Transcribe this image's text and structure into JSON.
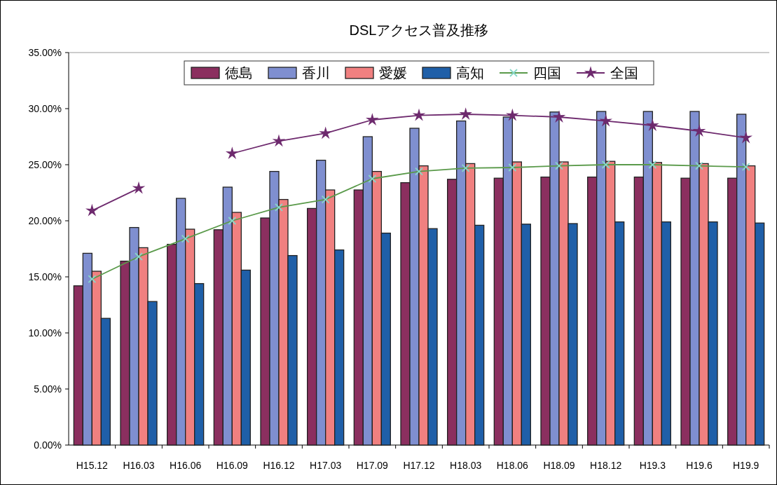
{
  "chart_data": {
    "type": "bar",
    "title": "DSLアクセス普及推移",
    "categories": [
      "H15.12",
      "H16.03",
      "H16.06",
      "H16.09",
      "H16.12",
      "H17.03",
      "H17.09",
      "H17.12",
      "H18.03",
      "H18.06",
      "H18.09",
      "H18.12",
      "H19.3",
      "H19.6",
      "H19.9"
    ],
    "series": [
      {
        "name": "徳島",
        "color": "#8b2f5f",
        "values": [
          14.2,
          16.4,
          17.9,
          19.2,
          20.25,
          21.1,
          22.75,
          23.4,
          23.7,
          23.8,
          23.9,
          23.9,
          23.9,
          23.8,
          23.8
        ]
      },
      {
        "name": "香川",
        "color": "#7f8fd0",
        "values": [
          17.1,
          19.4,
          22.0,
          23.0,
          24.4,
          25.4,
          27.5,
          28.25,
          28.9,
          29.25,
          29.7,
          29.75,
          29.75,
          29.75,
          29.5
        ]
      },
      {
        "name": "愛媛",
        "color": "#f08080",
        "values": [
          15.5,
          17.6,
          19.25,
          20.75,
          21.9,
          22.75,
          24.4,
          24.9,
          25.1,
          25.25,
          25.25,
          25.3,
          25.2,
          25.1,
          24.9
        ]
      },
      {
        "name": "高知",
        "color": "#1f5fa8",
        "values": [
          11.3,
          12.8,
          14.4,
          15.6,
          16.9,
          17.4,
          18.9,
          19.3,
          19.6,
          19.7,
          19.75,
          19.9,
          19.9,
          19.9,
          19.8
        ]
      },
      {
        "name": "四国",
        "type": "line",
        "color": "#5a9a4a",
        "marker": "cross",
        "values": [
          14.8,
          16.8,
          18.4,
          20.0,
          21.2,
          21.9,
          23.75,
          24.4,
          24.7,
          24.75,
          24.9,
          25.0,
          25.0,
          24.9,
          24.8
        ]
      },
      {
        "name": "全国",
        "type": "line",
        "color": "#6e2a6e",
        "marker": "star",
        "values": [
          20.9,
          22.9,
          null,
          26.0,
          27.1,
          27.8,
          29.0,
          29.4,
          29.5,
          29.4,
          29.25,
          28.9,
          28.5,
          28.0,
          27.4
        ]
      }
    ],
    "ylim": [
      0,
      35
    ],
    "yticks": [
      {
        "value": 0,
        "label": "0.00%"
      },
      {
        "value": 5,
        "label": "5.00%"
      },
      {
        "value": 10,
        "label": "10.00%"
      },
      {
        "value": 15,
        "label": "15.00%"
      },
      {
        "value": 20,
        "label": "20.00%"
      },
      {
        "value": 25,
        "label": "25.00%"
      },
      {
        "value": 30,
        "label": "30.00%"
      },
      {
        "value": 35,
        "label": "35.00%"
      }
    ],
    "legend": "top",
    "grid": false
  }
}
